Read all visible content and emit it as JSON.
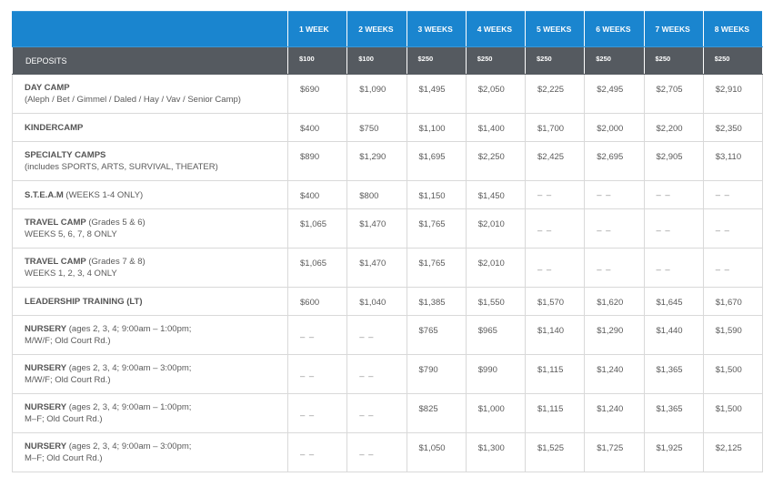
{
  "header": {
    "weeks": [
      "1 WEEK",
      "2 WEEKS",
      "3 WEEKS",
      "4 WEEKS",
      "5 WEEKS",
      "6 WEEKS",
      "7 WEEKS",
      "8 WEEKS"
    ]
  },
  "deposits": {
    "label": "DEPOSITS",
    "values": [
      "$100",
      "$100",
      "$250",
      "$250",
      "$250",
      "$250",
      "$250",
      "$250"
    ]
  },
  "rows": [
    {
      "title": "DAY CAMP",
      "rest": "",
      "line2": "(Aleph / Bet / Gimmel / Daled / Hay / Vav / Senior Camp)",
      "size": "tall",
      "values": [
        "$690",
        "$1,090",
        "$1,495",
        "$2,050",
        "$2,225",
        "$2,495",
        "$2,705",
        "$2,910"
      ]
    },
    {
      "title": "KINDERCAMP",
      "rest": "",
      "line2": "",
      "size": "short",
      "values": [
        "$400",
        "$750",
        "$1,100",
        "$1,400",
        "$1,700",
        "$2,000",
        "$2,200",
        "$2,350"
      ]
    },
    {
      "title": "SPECIALTY CAMPS",
      "rest": "",
      "line2": "(includes SPORTS, ARTS, SURVIVAL, THEATER)",
      "size": "tall",
      "values": [
        "$890",
        "$1,290",
        "$1,695",
        "$2,250",
        "$2,425",
        "$2,695",
        "$2,905",
        "$3,110"
      ]
    },
    {
      "title": "S.T.E.A.M",
      "rest": " (WEEKS 1-4 ONLY)",
      "line2": "",
      "size": "short",
      "values": [
        "$400",
        "$800",
        "$1,150",
        "$1,450",
        "– –",
        "– –",
        "– –",
        "– –"
      ]
    },
    {
      "title": "TRAVEL CAMP",
      "rest": " (Grades 5 & 6)",
      "line2": "WEEKS 5, 6, 7, 8 ONLY",
      "size": "tall",
      "values": [
        "$1,065",
        "$1,470",
        "$1,765",
        "$2,010",
        "– –",
        "– –",
        "– –",
        "– –"
      ]
    },
    {
      "title": "TRAVEL CAMP",
      "rest": " (Grades 7 & 8)",
      "line2": "WEEKS 1, 2, 3, 4 ONLY",
      "size": "tall",
      "values": [
        "$1,065",
        "$1,470",
        "$1,765",
        "$2,010",
        "– –",
        "– –",
        "– –",
        "– –"
      ]
    },
    {
      "title": "LEADERSHIP TRAINING (LT)",
      "rest": "",
      "line2": "",
      "size": "short",
      "values": [
        "$600",
        "$1,040",
        "$1,385",
        "$1,550",
        "$1,570",
        "$1,620",
        "$1,645",
        "$1,670"
      ]
    },
    {
      "title": "NURSERY",
      "rest": " (ages 2, 3, 4; 9:00am – 1:00pm;",
      "line2": "M/W/F; Old Court Rd.)",
      "size": "tall",
      "values": [
        "– –",
        "– –",
        "$765",
        "$965",
        "$1,140",
        "$1,290",
        "$1,440",
        "$1,590"
      ]
    },
    {
      "title": "NURSERY",
      "rest": " (ages 2, 3, 4; 9:00am – 3:00pm;",
      "line2": "M/W/F; Old Court Rd.)",
      "size": "tall",
      "values": [
        "– –",
        "– –",
        "$790",
        "$990",
        "$1,115",
        "$1,240",
        "$1,365",
        "$1,500"
      ]
    },
    {
      "title": "NURSERY",
      "rest": " (ages 2, 3, 4; 9:00am – 1:00pm;",
      "line2": "M–F; Old Court Rd.)",
      "size": "tall",
      "values": [
        "– –",
        "– –",
        "$825",
        "$1,000",
        "$1,115",
        "$1,240",
        "$1,365",
        "$1,500"
      ]
    },
    {
      "title": "NURSERY",
      "rest": " (ages 2, 3, 4; 9:00am – 3:00pm;",
      "line2": "M–F; Old Court Rd.)",
      "size": "tall",
      "values": [
        "– –",
        "– –",
        "$1,050",
        "$1,300",
        "$1,525",
        "$1,725",
        "$1,925",
        "$2,125"
      ]
    }
  ]
}
